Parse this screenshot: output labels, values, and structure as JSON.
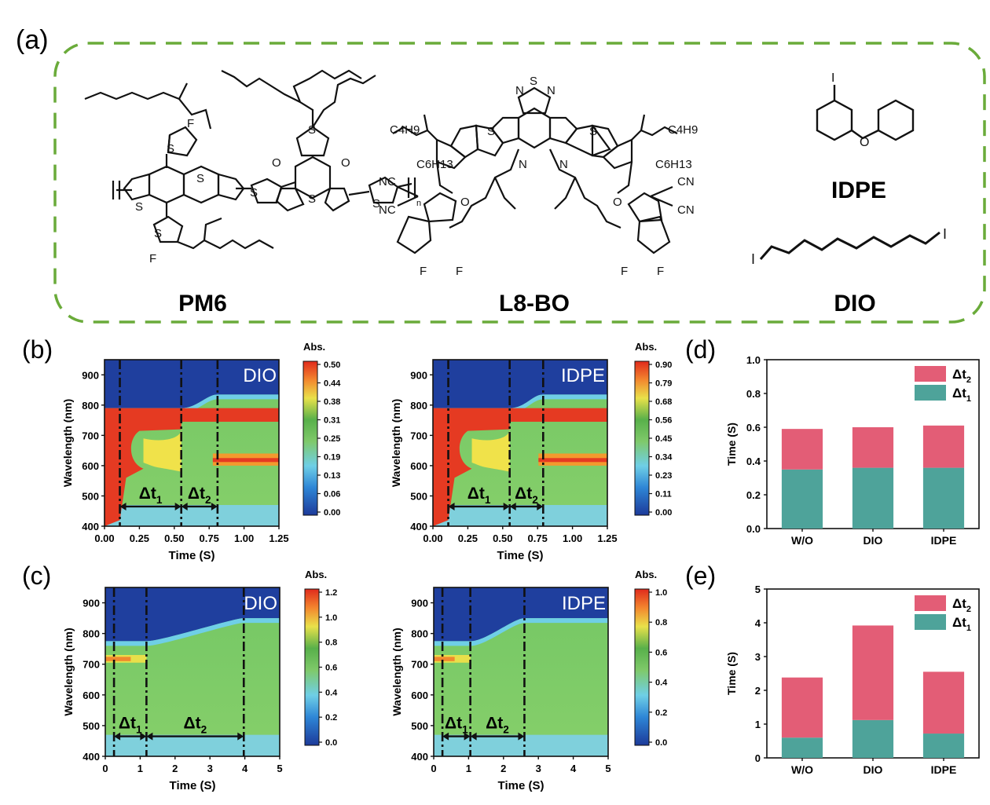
{
  "panels": {
    "a": {
      "label": "(a)",
      "molecules": [
        {
          "name": "PM6",
          "atoms": [
            "F",
            "S",
            "S",
            "S",
            "S",
            "S",
            "S",
            "O",
            "O",
            "S",
            "S",
            "F",
            "n"
          ]
        },
        {
          "name": "L8-BO",
          "atoms": [
            "N",
            "S",
            "N",
            "C4H9",
            "C6H13",
            "S",
            "S",
            "N",
            "N",
            "NC",
            "NC",
            "O",
            "F",
            "F",
            "C4H9",
            "C6H13",
            "CN",
            "CN",
            "O",
            "F",
            "F"
          ]
        },
        {
          "name": "IDPE",
          "atoms": [
            "I",
            "O"
          ]
        },
        {
          "name": "DIO",
          "atoms": [
            "I",
            "I"
          ]
        }
      ]
    },
    "b": {
      "label": "(b)"
    },
    "c": {
      "label": "(c)"
    },
    "d": {
      "label": "(d)"
    },
    "e": {
      "label": "(e)"
    }
  },
  "colors": {
    "dashed_box": "#6aab3a",
    "dt1": "#4ea39a",
    "dt2": "#e35d76"
  },
  "chart_data": [
    {
      "id": "b-DIO",
      "type": "heatmap",
      "tag": "DIO",
      "xlabel": "Time (S)",
      "ylabel": "Wavelength (nm)",
      "xlim": [
        0,
        1.25
      ],
      "ylim": [
        400,
        950
      ],
      "xticks": [
        "0.00",
        "0.25",
        "0.50",
        "0.75",
        "1.00",
        "1.25"
      ],
      "yticks": [
        "400",
        "500",
        "600",
        "700",
        "800",
        "900"
      ],
      "colorbar": {
        "title": "Abs.",
        "ticks": [
          "0.50",
          "0.44",
          "0.38",
          "0.31",
          "0.25",
          "0.19",
          "0.13",
          "0.06",
          "0.00"
        ]
      },
      "markers": [
        0.11,
        0.55,
        0.81
      ],
      "intervals": [
        {
          "label": "Δt1",
          "from": 0.11,
          "to": 0.55
        },
        {
          "label": "Δt2",
          "from": 0.55,
          "to": 0.81
        }
      ]
    },
    {
      "id": "b-IDPE",
      "type": "heatmap",
      "tag": "IDPE",
      "xlabel": "Time (S)",
      "ylabel": "Wavelength (nm)",
      "xlim": [
        0,
        1.25
      ],
      "ylim": [
        400,
        950
      ],
      "xticks": [
        "0.00",
        "0.25",
        "0.50",
        "0.75",
        "1.00",
        "1.25"
      ],
      "yticks": [
        "400",
        "500",
        "600",
        "700",
        "800",
        "900"
      ],
      "colorbar": {
        "title": "Abs.",
        "ticks": [
          "0.90",
          "0.79",
          "0.68",
          "0.56",
          "0.45",
          "0.34",
          "0.23",
          "0.11",
          "0.00"
        ]
      },
      "markers": [
        0.11,
        0.55,
        0.79
      ],
      "intervals": [
        {
          "label": "Δt1",
          "from": 0.11,
          "to": 0.55
        },
        {
          "label": "Δt2",
          "from": 0.55,
          "to": 0.79
        }
      ]
    },
    {
      "id": "c-DIO",
      "type": "heatmap",
      "tag": "DIO",
      "xlabel": "Time (S)",
      "ylabel": "Wavelength (nm)",
      "xlim": [
        0,
        5
      ],
      "ylim": [
        400,
        950
      ],
      "xticks": [
        "0",
        "1",
        "2",
        "3",
        "4",
        "5"
      ],
      "yticks": [
        "400",
        "500",
        "600",
        "700",
        "800",
        "900"
      ],
      "colorbar": {
        "title": "Abs.",
        "ticks": [
          "1.2",
          "1.0",
          "0.8",
          "0.6",
          "0.4",
          "0.2",
          "0.0"
        ]
      },
      "markers": [
        0.25,
        1.18,
        3.97
      ],
      "intervals": [
        {
          "label": "Δt1",
          "from": 0.25,
          "to": 1.18
        },
        {
          "label": "Δt2",
          "from": 1.18,
          "to": 3.97
        }
      ]
    },
    {
      "id": "c-IDPE",
      "type": "heatmap",
      "tag": "IDPE",
      "xlabel": "Time (S)",
      "ylabel": "Wavelength (nm)",
      "xlim": [
        0,
        5
      ],
      "ylim": [
        400,
        950
      ],
      "xticks": [
        "0",
        "1",
        "2",
        "3",
        "4",
        "5"
      ],
      "yticks": [
        "400",
        "500",
        "600",
        "700",
        "800",
        "900"
      ],
      "colorbar": {
        "title": "Abs.",
        "ticks": [
          "1.0",
          "0.8",
          "0.6",
          "0.4",
          "0.2",
          "0.0"
        ]
      },
      "markers": [
        0.25,
        1.05,
        2.6
      ],
      "intervals": [
        {
          "label": "Δt1",
          "from": 0.25,
          "to": 1.05
        },
        {
          "label": "Δt2",
          "from": 1.05,
          "to": 2.6
        }
      ]
    },
    {
      "id": "d",
      "type": "bar",
      "stacked": true,
      "categories": [
        "W/O",
        "DIO",
        "IDPE"
      ],
      "series": [
        {
          "name": "Δt1",
          "values": [
            0.35,
            0.36,
            0.36
          ]
        },
        {
          "name": "Δt2",
          "values": [
            0.24,
            0.24,
            0.25
          ]
        }
      ],
      "ylabel": "Time (S)",
      "ylim": [
        0,
        1.0
      ],
      "yticks": [
        "0.0",
        "0.2",
        "0.4",
        "0.6",
        "0.8",
        "1.0"
      ],
      "legend": "top-right"
    },
    {
      "id": "e",
      "type": "bar",
      "stacked": true,
      "categories": [
        "W/O",
        "DIO",
        "IDPE"
      ],
      "series": [
        {
          "name": "Δt1",
          "values": [
            0.6,
            1.12,
            0.72
          ]
        },
        {
          "name": "Δt2",
          "values": [
            1.78,
            2.8,
            1.83
          ]
        }
      ],
      "ylabel": "Time (S)",
      "ylim": [
        0,
        5
      ],
      "yticks": [
        "0",
        "1",
        "2",
        "3",
        "4",
        "5"
      ],
      "legend": "top-right"
    }
  ]
}
